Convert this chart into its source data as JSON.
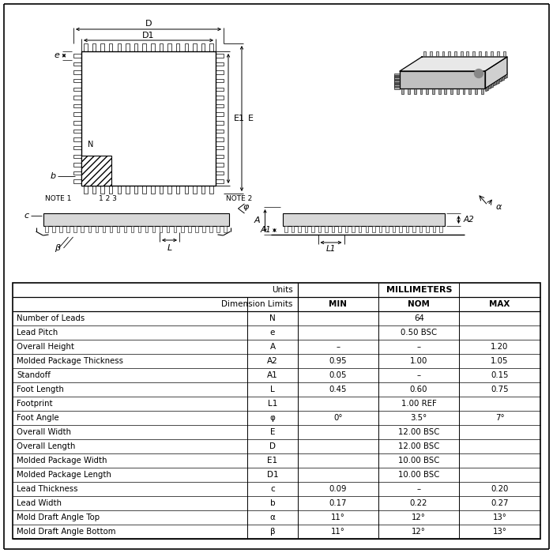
{
  "bg_color": "#ffffff",
  "table_rows": [
    [
      "Number of Leads",
      "N",
      "",
      "64",
      ""
    ],
    [
      "Lead Pitch",
      "e",
      "",
      "0.50 BSC",
      ""
    ],
    [
      "Overall Height",
      "A",
      "–",
      "–",
      "1.20"
    ],
    [
      "Molded Package Thickness",
      "A2",
      "0.95",
      "1.00",
      "1.05"
    ],
    [
      "Standoff",
      "A1",
      "0.05",
      "–",
      "0.15"
    ],
    [
      "Foot Length",
      "L",
      "0.45",
      "0.60",
      "0.75"
    ],
    [
      "Footprint",
      "L1",
      "",
      "1.00 REF",
      ""
    ],
    [
      "Foot Angle",
      "φ",
      "0°",
      "3.5°",
      "7°"
    ],
    [
      "Overall Width",
      "E",
      "",
      "12.00 BSC",
      ""
    ],
    [
      "Overall Length",
      "D",
      "",
      "12.00 BSC",
      ""
    ],
    [
      "Molded Package Width",
      "E1",
      "",
      "10.00 BSC",
      ""
    ],
    [
      "Molded Package Length",
      "D1",
      "",
      "10.00 BSC",
      ""
    ],
    [
      "Lead Thickness",
      "c",
      "0.09",
      "–",
      "0.20"
    ],
    [
      "Lead Width",
      "b",
      "0.17",
      "0.22",
      "0.27"
    ],
    [
      "Mold Draft Angle Top",
      "α",
      "11°",
      "12°",
      "13°"
    ],
    [
      "Mold Draft Angle Bottom",
      "β",
      "11°",
      "12°",
      "13°"
    ]
  ]
}
